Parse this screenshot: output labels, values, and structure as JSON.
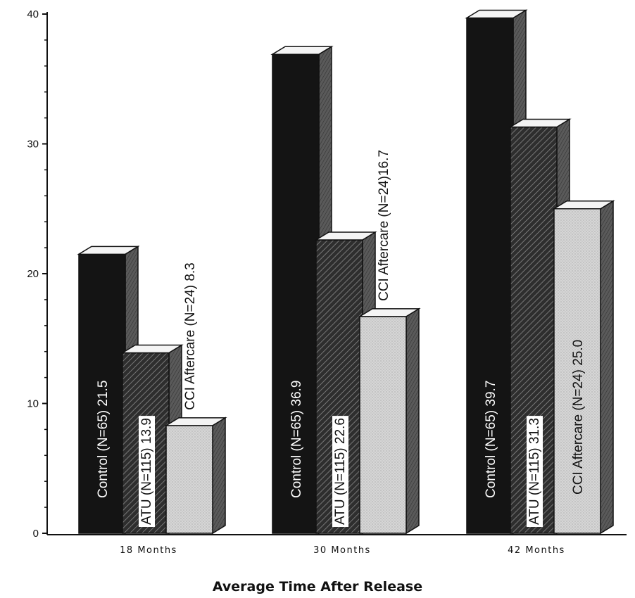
{
  "chart_data": {
    "type": "bar",
    "title": "",
    "xlabel": "Average Time After Release",
    "ylabel": "",
    "ylim": [
      0,
      40
    ],
    "yticks": [
      "0",
      "10",
      "20",
      "30",
      "40"
    ],
    "grid": false,
    "legend": "none",
    "categories": [
      "18 Months",
      "30 Months",
      "42 Months"
    ],
    "series": [
      {
        "name": "Control (N=65)",
        "values": [
          21.5,
          36.9,
          39.7
        ],
        "labels": [
          "Control (N=65) 21.5",
          "Control (N=65) 36.9",
          "Control (N=65) 39.7"
        ],
        "fill": "solid-black"
      },
      {
        "name": "ATU (N=115)",
        "values": [
          13.9,
          22.6,
          31.3
        ],
        "labels": [
          "ATU (N=115) 13.9",
          "ATU (N=115) 22.6",
          "ATU (N=115) 31.3"
        ],
        "fill": "diagonal-hatch"
      },
      {
        "name": "CCI Aftercare (N=24)",
        "values": [
          8.3,
          16.7,
          25.0
        ],
        "labels": [
          "CCI Aftercare (N=24) 8.3",
          "CCI Aftercare (N=24)16.7",
          "CCI Aftercare (N=24) 25.0"
        ],
        "fill": "light-stipple"
      }
    ],
    "colors": {
      "control": "#141414",
      "atu_base": "#3a3a3a",
      "cci_base": "#d4d4d4",
      "side_shade": "#555555",
      "axis": "#111111"
    }
  }
}
